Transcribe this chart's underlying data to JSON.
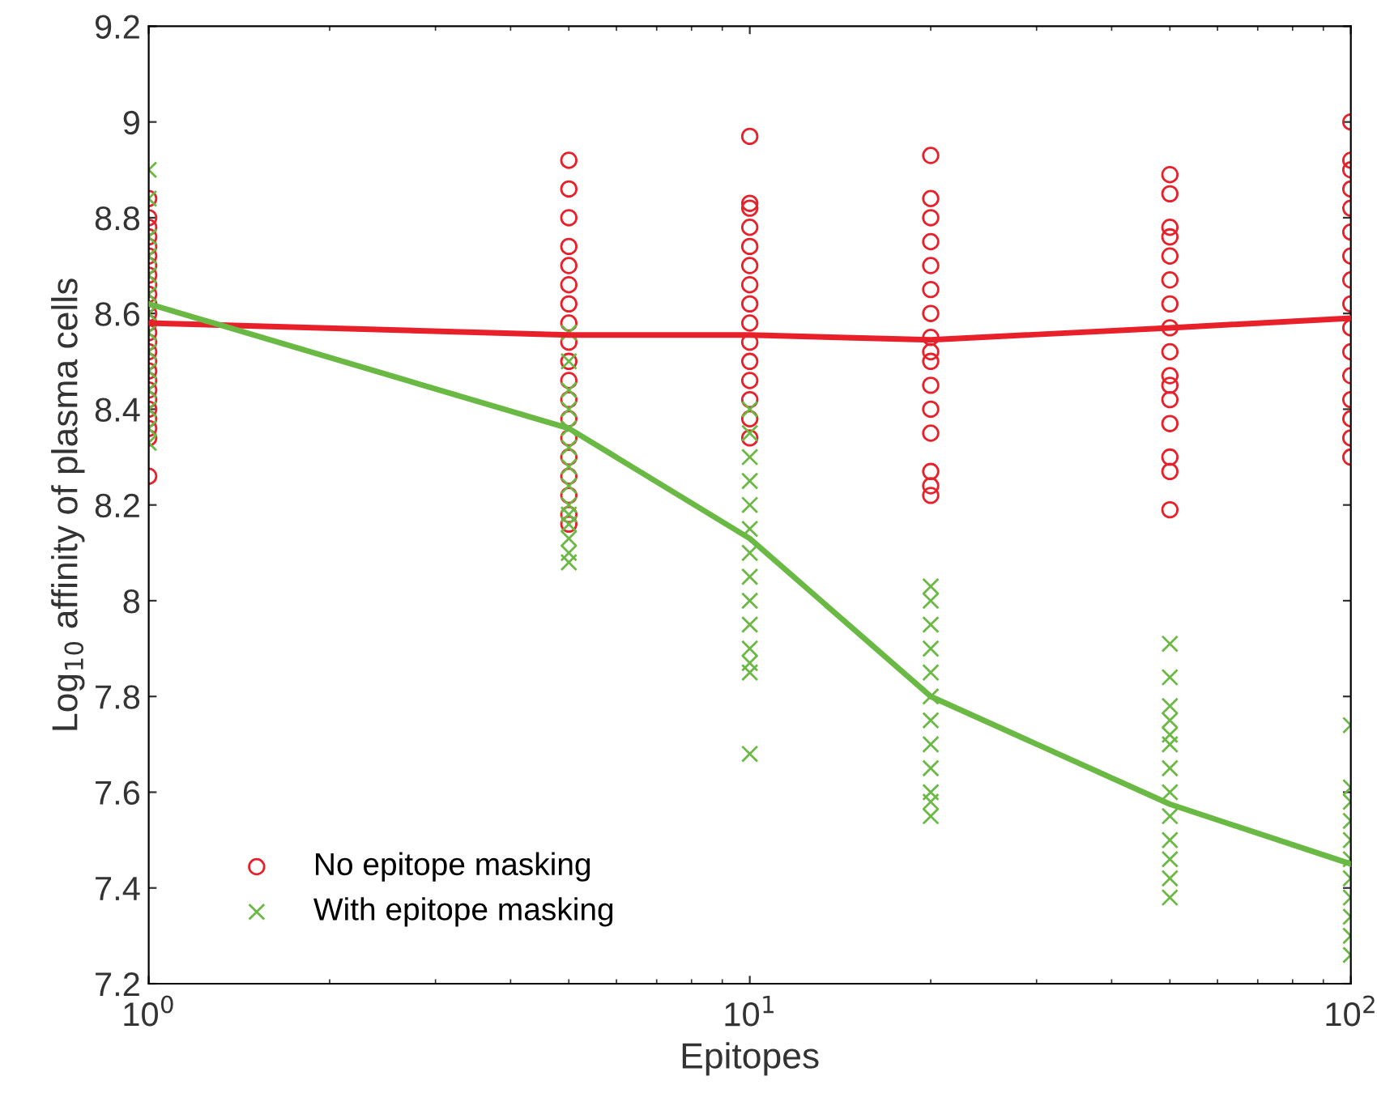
{
  "chart_data": {
    "type": "scatter",
    "xlabel": "Epitopes",
    "ylabel": "Log$_{10}$ affinity of plasma cells",
    "log": "x",
    "grid": false,
    "legend": "bottom left",
    "xlim": [
      1,
      100
    ],
    "xticks": [
      {
        "value": 1,
        "label": "10$^{0}$"
      },
      {
        "value": 10,
        "label": "10$^{1}$"
      },
      {
        "value": 100,
        "label": "10$^{2}$"
      }
    ],
    "ylim": [
      7.2,
      9.2
    ],
    "yticks": [
      7.2,
      7.4,
      7.6,
      7.8,
      8,
      8.2,
      8.4,
      8.6,
      8.8,
      9,
      9.2
    ],
    "series": [
      {
        "name": "No epitope masking",
        "marker": "circle",
        "color": "#e8202a",
        "x": [
          1,
          1,
          1,
          1,
          1,
          1,
          1,
          1,
          1,
          1,
          1,
          1,
          1,
          1,
          1,
          1,
          1,
          1,
          1,
          1,
          1,
          1,
          1,
          1,
          1,
          1,
          5,
          5,
          5,
          5,
          5,
          5,
          5,
          5,
          5,
          5,
          5,
          5,
          5,
          5,
          5,
          5,
          5,
          5,
          5,
          10,
          10,
          10,
          10,
          10,
          10,
          10,
          10,
          10,
          10,
          10,
          10,
          10,
          10,
          10,
          20,
          20,
          20,
          20,
          20,
          20,
          20,
          20,
          20,
          20,
          20,
          20,
          20,
          20,
          20,
          20,
          50,
          50,
          50,
          50,
          50,
          50,
          50,
          50,
          50,
          50,
          50,
          50,
          50,
          50,
          50,
          50,
          100,
          100,
          100,
          100,
          100,
          100,
          100,
          100,
          100,
          100,
          100,
          100,
          100,
          100,
          100,
          100
        ],
        "values": [
          8.26,
          8.34,
          8.36,
          8.38,
          8.4,
          8.42,
          8.44,
          8.46,
          8.48,
          8.5,
          8.52,
          8.54,
          8.56,
          8.58,
          8.6,
          8.62,
          8.64,
          8.66,
          8.68,
          8.7,
          8.72,
          8.74,
          8.76,
          8.78,
          8.8,
          8.84,
          8.16,
          8.18,
          8.22,
          8.26,
          8.3,
          8.34,
          8.38,
          8.42,
          8.46,
          8.5,
          8.54,
          8.58,
          8.62,
          8.66,
          8.7,
          8.74,
          8.8,
          8.86,
          8.92,
          8.34,
          8.38,
          8.42,
          8.46,
          8.5,
          8.54,
          8.58,
          8.62,
          8.66,
          8.7,
          8.74,
          8.78,
          8.82,
          8.83,
          8.97,
          8.22,
          8.24,
          8.27,
          8.35,
          8.4,
          8.45,
          8.5,
          8.55,
          8.6,
          8.65,
          8.7,
          8.75,
          8.8,
          8.84,
          8.93,
          8.52,
          8.19,
          8.27,
          8.3,
          8.37,
          8.42,
          8.47,
          8.52,
          8.57,
          8.62,
          8.67,
          8.72,
          8.76,
          8.78,
          8.85,
          8.89,
          8.45,
          8.3,
          8.34,
          8.38,
          8.42,
          8.47,
          8.52,
          8.57,
          8.62,
          8.67,
          8.72,
          8.77,
          8.82,
          8.86,
          8.9,
          8.92,
          9.0
        ]
      },
      {
        "name": "With epitope masking",
        "marker": "cross",
        "color": "#6ab944",
        "x": [
          1,
          1,
          1,
          1,
          1,
          1,
          1,
          1,
          1,
          1,
          1,
          1,
          1,
          1,
          5,
          5,
          5,
          5,
          5,
          5,
          5,
          5,
          5,
          5,
          5,
          5,
          5,
          5,
          10,
          10,
          10,
          10,
          10,
          10,
          10,
          10,
          10,
          10,
          10,
          10,
          10,
          10,
          20,
          20,
          20,
          20,
          20,
          20,
          20,
          20,
          20,
          20,
          20,
          20,
          50,
          50,
          50,
          50,
          50,
          50,
          50,
          50,
          50,
          50,
          50,
          50,
          50,
          100,
          100,
          100,
          100,
          100,
          100,
          100,
          100,
          100,
          100,
          100
        ],
        "values": [
          8.33,
          8.36,
          8.4,
          8.44,
          8.48,
          8.52,
          8.56,
          8.6,
          8.64,
          8.68,
          8.72,
          8.76,
          8.84,
          8.9,
          8.08,
          8.1,
          8.13,
          8.16,
          8.18,
          8.2,
          8.24,
          8.28,
          8.32,
          8.36,
          8.4,
          8.44,
          8.5,
          8.56,
          7.68,
          7.85,
          7.87,
          7.9,
          7.95,
          8.0,
          8.05,
          8.1,
          8.15,
          8.2,
          8.25,
          8.3,
          8.35,
          8.4,
          7.55,
          7.58,
          7.6,
          7.65,
          7.7,
          7.75,
          7.8,
          7.85,
          7.9,
          7.95,
          8.0,
          8.03,
          7.38,
          7.42,
          7.46,
          7.5,
          7.55,
          7.6,
          7.65,
          7.7,
          7.72,
          7.75,
          7.78,
          7.84,
          7.91,
          7.26,
          7.3,
          7.34,
          7.38,
          7.42,
          7.46,
          7.5,
          7.54,
          7.58,
          7.61,
          7.74
        ]
      },
      {
        "type": "line",
        "color": "#e8202a",
        "x": [
          1,
          5,
          10,
          20,
          50,
          100
        ],
        "values": [
          8.58,
          8.555,
          8.555,
          8.545,
          8.57,
          8.59
        ]
      },
      {
        "type": "line",
        "color": "#6ab944",
        "x": [
          1,
          5,
          10,
          20,
          50,
          100
        ],
        "values": [
          8.62,
          8.36,
          8.13,
          7.8,
          7.575,
          7.45
        ]
      }
    ]
  }
}
